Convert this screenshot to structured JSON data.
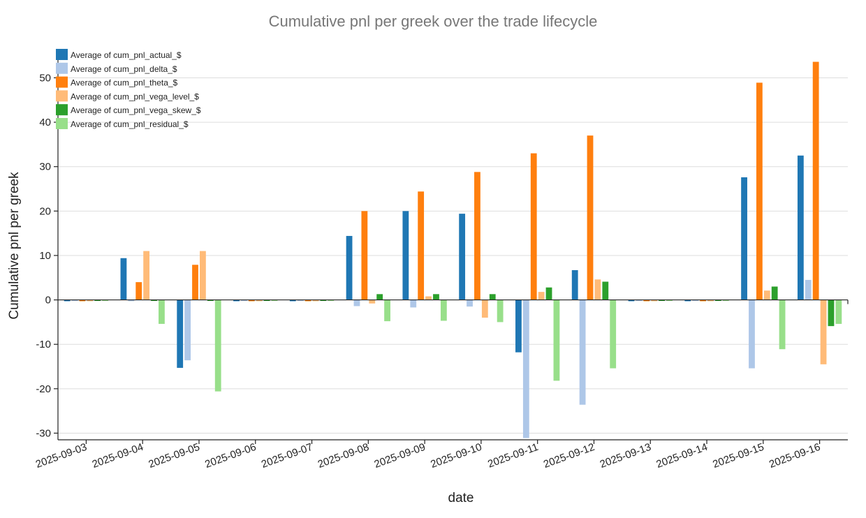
{
  "chart_data": {
    "type": "bar",
    "title": "Cumulative pnl per greek over the trade lifecycle",
    "xlabel": "date",
    "ylabel": "Cumulative pnl per greek",
    "ylim": [
      -31.5,
      54
    ],
    "yticks": [
      -30,
      -20,
      -10,
      0,
      10,
      20,
      30,
      40,
      50
    ],
    "grid": true,
    "legend_position": "top-left",
    "categories": [
      "2025-09-03",
      "2025-09-04",
      "2025-09-05",
      "2025-09-06",
      "2025-09-07",
      "2025-09-08",
      "2025-09-09",
      "2025-09-10",
      "2025-09-11",
      "2025-09-12",
      "2025-09-13",
      "2025-09-14",
      "2025-09-15",
      "2025-09-16"
    ],
    "series": [
      {
        "name": "Average of cum_pnl_actual_$",
        "color": "#1f77b4",
        "values": [
          -0.3,
          9.4,
          -15.3,
          -0.3,
          -0.3,
          14.4,
          20.0,
          19.4,
          -11.8,
          6.7,
          -0.3,
          -0.3,
          27.6,
          32.5
        ]
      },
      {
        "name": "Average of cum_pnl_delta_$",
        "color": "#aec7e8",
        "values": [
          0,
          -0.3,
          -13.6,
          0,
          0,
          -1.4,
          -1.7,
          -1.5,
          -31.1,
          -23.6,
          0,
          0,
          -15.4,
          4.5
        ]
      },
      {
        "name": "Average of cum_pnl_theta_$",
        "color": "#ff7f0e",
        "values": [
          -0.3,
          4.0,
          7.9,
          -0.3,
          -0.3,
          20.0,
          24.4,
          28.8,
          33.0,
          37.0,
          -0.3,
          -0.3,
          48.9,
          53.6
        ]
      },
      {
        "name": "Average of cum_pnl_vega_level_$",
        "color": "#ffbb78",
        "values": [
          -0.3,
          11.0,
          11.0,
          -0.3,
          -0.3,
          -0.8,
          0.8,
          -4.0,
          1.8,
          4.6,
          -0.3,
          -0.3,
          2.1,
          -14.5
        ]
      },
      {
        "name": "Average of cum_pnl_vega_skew_$",
        "color": "#2ca02c",
        "values": [
          -0.2,
          -0.2,
          -0.2,
          -0.2,
          -0.2,
          1.3,
          1.3,
          1.3,
          2.8,
          4.1,
          -0.2,
          -0.2,
          3.0,
          -5.9
        ]
      },
      {
        "name": "Average of cum_pnl_residual_$",
        "color": "#98df8a",
        "values": [
          -0.1,
          -5.4,
          -20.6,
          -0.1,
          -0.1,
          -4.8,
          -4.7,
          -5.0,
          -18.2,
          -15.4,
          -0.1,
          -0.1,
          -11.1,
          -5.4
        ]
      }
    ]
  }
}
